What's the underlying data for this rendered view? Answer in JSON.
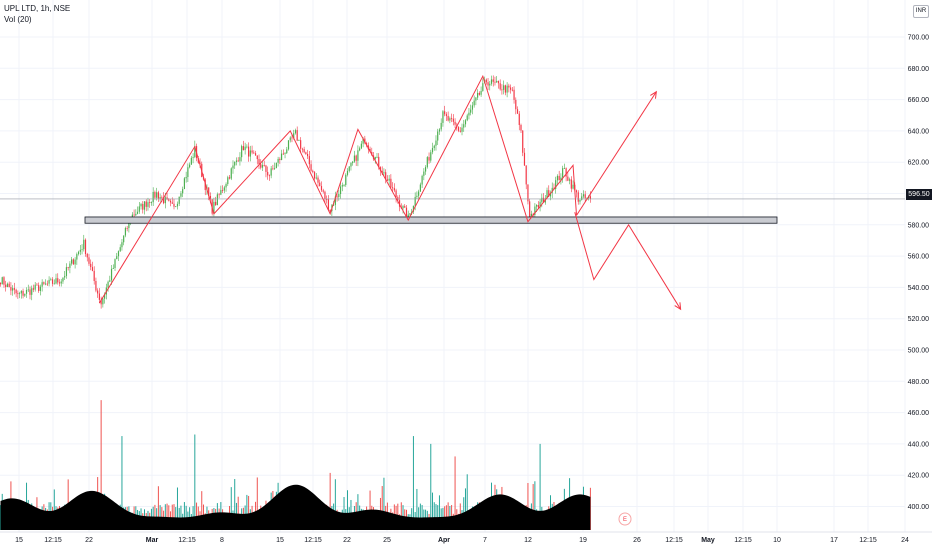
{
  "legend": {
    "symbol": "UPL LTD, 1h, NSE",
    "volume": "Vol (20)"
  },
  "currency": "INR",
  "last_price": "596.50",
  "colors": {
    "up": "#26a69a",
    "down": "#ef5350",
    "candle_up": "#4caf50",
    "candle_down": "#f23645",
    "volume_area": "#000000",
    "drawing": "#f23645",
    "support_zone_fill": "#c9cbd1",
    "support_zone_border": "#131722",
    "grid": "#f0f3fa",
    "axis_text": "#131722",
    "price_line": "#9598a1"
  },
  "event_marker": "E",
  "chart_data": {
    "type": "candlestick",
    "title": "UPL LTD, 1h, NSE",
    "y_axis": {
      "range": [
        389,
        712
      ],
      "ticks": [
        400,
        420,
        440,
        460,
        480,
        500,
        520,
        540,
        560,
        580,
        600,
        620,
        640,
        660,
        680,
        700
      ]
    },
    "x_axis": {
      "ticks": [
        {
          "label": "15",
          "bold": false
        },
        {
          "label": "12:15",
          "bold": false
        },
        {
          "label": "22",
          "bold": false
        },
        {
          "label": "Mar",
          "bold": true
        },
        {
          "label": "12:15",
          "bold": false
        },
        {
          "label": "8",
          "bold": false
        },
        {
          "label": "15",
          "bold": false
        },
        {
          "label": "12:15",
          "bold": false
        },
        {
          "label": "22",
          "bold": false
        },
        {
          "label": "25",
          "bold": false
        },
        {
          "label": "Apr",
          "bold": true
        },
        {
          "label": "7",
          "bold": false
        },
        {
          "label": "12",
          "bold": false
        },
        {
          "label": "19",
          "bold": false
        },
        {
          "label": "26",
          "bold": false
        },
        {
          "label": "12:15",
          "bold": false
        },
        {
          "label": "May",
          "bold": true
        },
        {
          "label": "12:15",
          "bold": false
        },
        {
          "label": "10",
          "bold": false
        },
        {
          "label": "17",
          "bold": false
        },
        {
          "label": "12:15",
          "bold": false
        },
        {
          "label": "24",
          "bold": false
        }
      ]
    },
    "price_keypoints": [
      {
        "bar": 0,
        "price": 545
      },
      {
        "bar": 10,
        "price": 535
      },
      {
        "bar": 22,
        "price": 540
      },
      {
        "bar": 35,
        "price": 545
      },
      {
        "bar": 48,
        "price": 568
      },
      {
        "bar": 55,
        "price": 540
      },
      {
        "bar": 58,
        "price": 530
      },
      {
        "bar": 75,
        "price": 585
      },
      {
        "bar": 90,
        "price": 600
      },
      {
        "bar": 100,
        "price": 590
      },
      {
        "bar": 112,
        "price": 628
      },
      {
        "bar": 122,
        "price": 590
      },
      {
        "bar": 140,
        "price": 630
      },
      {
        "bar": 155,
        "price": 612
      },
      {
        "bar": 170,
        "price": 638
      },
      {
        "bar": 190,
        "price": 590
      },
      {
        "bar": 210,
        "price": 635
      },
      {
        "bar": 235,
        "price": 584
      },
      {
        "bar": 255,
        "price": 650
      },
      {
        "bar": 265,
        "price": 640
      },
      {
        "bar": 280,
        "price": 672
      },
      {
        "bar": 295,
        "price": 665
      },
      {
        "bar": 300,
        "price": 638
      },
      {
        "bar": 305,
        "price": 585
      },
      {
        "bar": 312,
        "price": 595
      },
      {
        "bar": 325,
        "price": 615
      },
      {
        "bar": 333,
        "price": 597
      },
      {
        "bar": 340,
        "price": 596.5
      }
    ],
    "volume": {
      "peaks": [
        468,
        445,
        446,
        445,
        440,
        432,
        440
      ],
      "moving_average_range": [
        393,
        414
      ]
    },
    "support_zone": {
      "price_low": 581,
      "price_high": 585
    },
    "pattern_lines": [
      {
        "bar": 57,
        "price": 530
      },
      {
        "bar": 112,
        "price": 630
      },
      {
        "bar": 123,
        "price": 587
      },
      {
        "bar": 167,
        "price": 640
      },
      {
        "bar": 190,
        "price": 587
      },
      {
        "bar": 206,
        "price": 641
      },
      {
        "bar": 235,
        "price": 583
      },
      {
        "bar": 278,
        "price": 675
      },
      {
        "bar": 304,
        "price": 582
      },
      {
        "bar": 330,
        "price": 618
      },
      {
        "bar": 332,
        "price": 586
      },
      {
        "bar": 378,
        "price": 665
      }
    ],
    "bear_projection": [
      {
        "bar": 331,
        "price": 588
      },
      {
        "bar": 342,
        "price": 545
      },
      {
        "bar": 362,
        "price": 580
      },
      {
        "bar": 392,
        "price": 526
      }
    ],
    "bull_projection": [
      {
        "bar": 332,
        "price": 586
      },
      {
        "bar": 378,
        "price": 665
      }
    ],
    "last_price": 596.5
  }
}
